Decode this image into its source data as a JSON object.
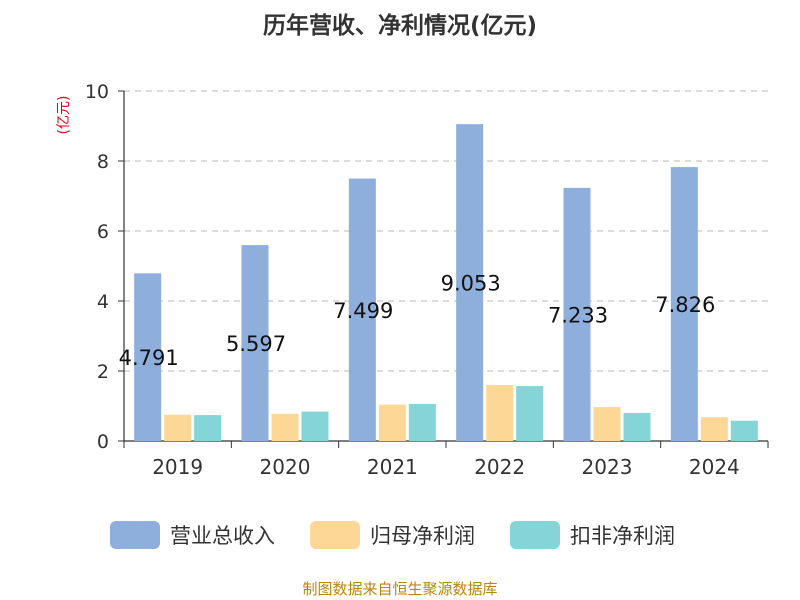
{
  "chart_data": {
    "type": "bar",
    "title": "历年营收、净利情况(亿元)",
    "ylabel": "(亿元)",
    "xlabel": "",
    "categories": [
      "2019",
      "2020",
      "2021",
      "2022",
      "2023",
      "2024"
    ],
    "ylim": [
      0,
      10
    ],
    "yticks": [
      "0",
      "2",
      "4",
      "6",
      "8",
      "10"
    ],
    "grid": true,
    "legend_position": "bottom",
    "series": [
      {
        "name": "营业总收入",
        "color": "#8eaedb",
        "values": [
          4.791,
          5.597,
          7.499,
          9.053,
          7.233,
          7.826
        ],
        "labels": [
          "4.791",
          "5.597",
          "7.499",
          "9.053",
          "7.233",
          "7.826"
        ]
      },
      {
        "name": "归母净利润",
        "color": "#fdd795",
        "values": [
          0.75,
          0.78,
          1.04,
          1.6,
          0.97,
          0.68
        ]
      },
      {
        "name": "扣非净利润",
        "color": "#84d4d8",
        "values": [
          0.74,
          0.84,
          1.06,
          1.57,
          0.8,
          0.58
        ]
      }
    ]
  },
  "source": "制图数据来自恒生聚源数据库"
}
